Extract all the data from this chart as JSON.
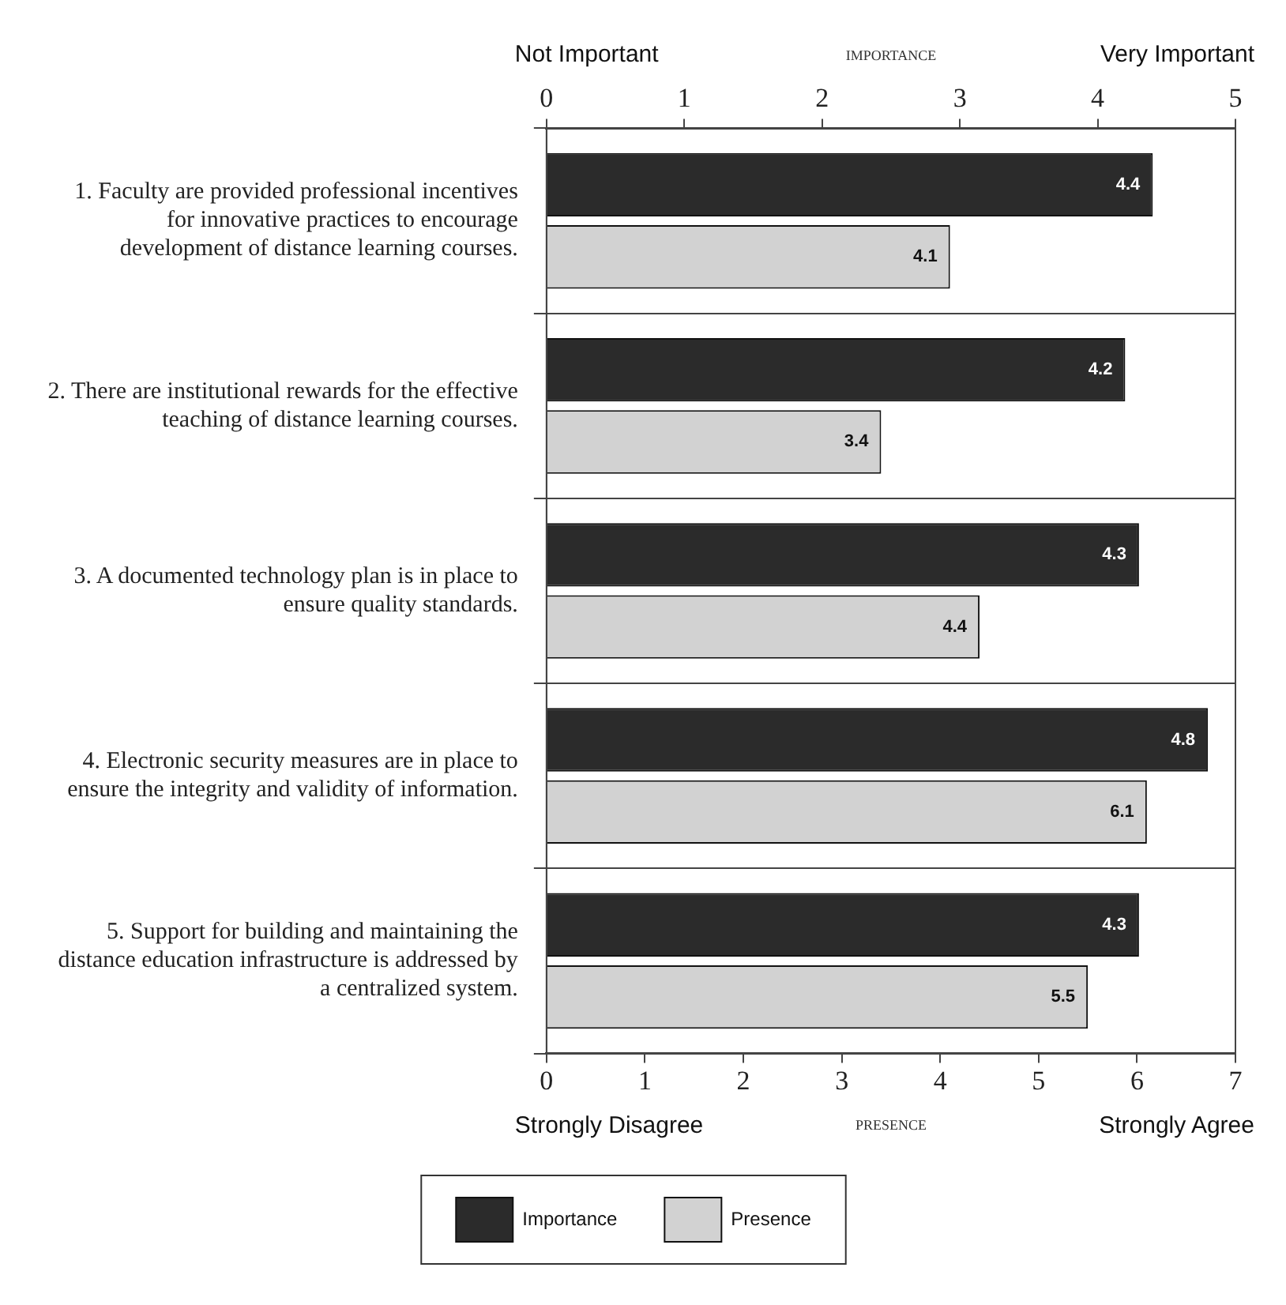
{
  "chart_data": {
    "type": "bar",
    "orientation": "horizontal",
    "categories": [
      "1. Faculty are provided professional incentives for innovative practices to encourage development of distance learning courses.",
      "2. There are institutional rewards for the effective teaching of distance learning courses.",
      "3. A documented technology plan is in place to ensure quality standards.",
      "4. Electronic security measures are in place to ensure the integrity and validity of information.",
      "5. Support for building and maintaining the distance education infrastructure is addressed by a centralized system."
    ],
    "series": [
      {
        "name": "Importance",
        "color": "#2b2b2b",
        "axis": "x2",
        "values": [
          4.4,
          4.2,
          4.3,
          4.8,
          4.3
        ]
      },
      {
        "name": "Presence",
        "color": "#d2d2d2",
        "values": [
          4.1,
          3.4,
          4.4,
          6.1,
          5.5
        ]
      }
    ],
    "x2lim": [
      0,
      5
    ],
    "x2ticks": [
      0,
      1,
      2,
      3,
      4,
      5
    ],
    "x2label": "IMPORTANCE",
    "xlim": [
      0,
      7
    ],
    "xticks": [
      0,
      1,
      2,
      3,
      4,
      5,
      6,
      7
    ],
    "xlabel": "PRESENCE",
    "annotations": [
      "Not Important",
      "Very Important",
      "Strongly Disagree",
      "Strongly Agree"
    ],
    "data_labels": true,
    "grid": "y",
    "legend": "bottom"
  }
}
